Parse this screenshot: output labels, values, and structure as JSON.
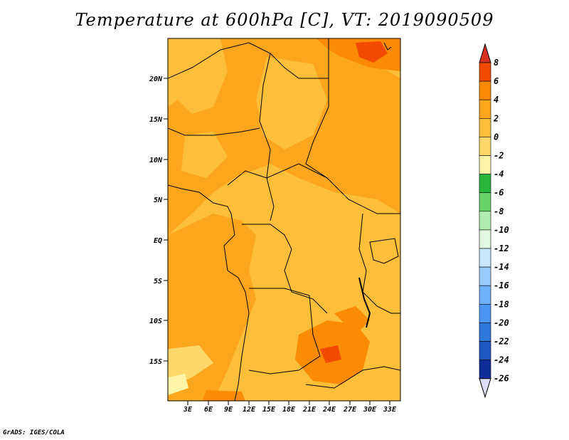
{
  "title": "Temperature at 600hPa [C], VT: 2019090509",
  "credit": "GrADS: IGES/COLA",
  "map": {
    "lon_range": [
      0,
      34.5
    ],
    "lat_range": [
      -20,
      25
    ],
    "lat_ticks": [
      "20N",
      "15N",
      "10N",
      "5N",
      "EQ",
      "5S",
      "10S",
      "15S"
    ],
    "lon_ticks": [
      "3E",
      "6E",
      "9E",
      "12E",
      "15E",
      "18E",
      "21E",
      "24E",
      "27E",
      "30E",
      "33E"
    ]
  },
  "colorbar": {
    "labels": [
      "8",
      "6",
      "4",
      "2",
      "0",
      "-2",
      "-4",
      "-6",
      "-8",
      "-10",
      "-12",
      "-14",
      "-16",
      "-18",
      "-20",
      "-22",
      "-24",
      "-26"
    ],
    "colors": [
      "#d7301f",
      "#f24a00",
      "#fb8a05",
      "#fca61d",
      "#fdbf3a",
      "#fed969",
      "#fdf4a8",
      "#2ab63a",
      "#68d46a",
      "#b3ecb0",
      "#e2f8e0",
      "#c9e7ff",
      "#99ccfc",
      "#6fb1fa",
      "#4b96f2",
      "#2f78dc",
      "#1e59c0",
      "#0e2d96",
      "#dcdcf6"
    ]
  }
}
